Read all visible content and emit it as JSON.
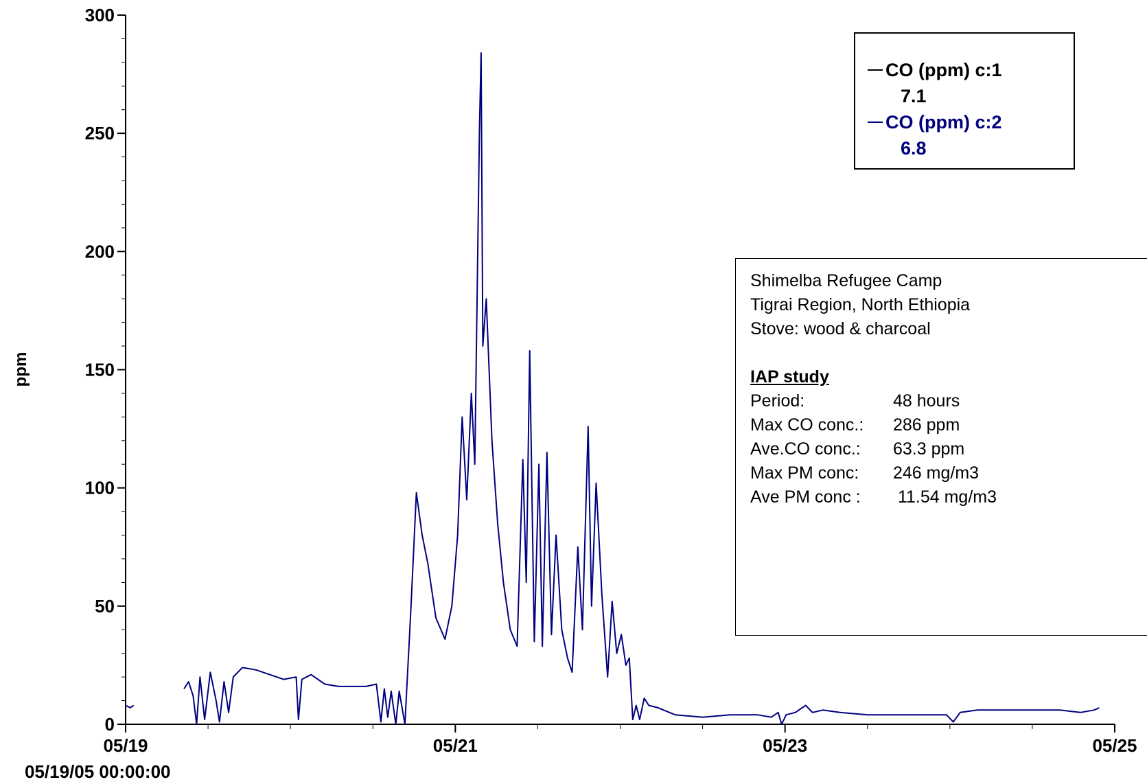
{
  "chart_data": {
    "type": "line",
    "ylabel": "ppm",
    "xlabel": "",
    "ylim": [
      0,
      300
    ],
    "xlim": [
      "05/19",
      "05/25"
    ],
    "y_ticks": [
      "0",
      "50",
      "100",
      "150",
      "200",
      "250",
      "300"
    ],
    "x_ticks": [
      "05/19",
      "05/21",
      "05/23",
      "05/25"
    ],
    "x_start_label": "05/19/05 00:00:00",
    "legend_position": "top-right",
    "series": [
      {
        "name": "CO (ppm) c:1",
        "legend_value": "7.1",
        "color": "#000000",
        "points": []
      },
      {
        "name": "CO (ppm) c:2",
        "legend_value": "6.8",
        "color": "#000080",
        "points": [
          [
            "05/19 00:00",
            8
          ],
          [
            "05/19 00:40",
            7
          ],
          [
            "05/19 01:10",
            8
          ],
          [
            "05/19 08:30",
            15
          ],
          [
            "05/19 09:10",
            18
          ],
          [
            "05/19 09:50",
            12
          ],
          [
            "05/19 10:20",
            0
          ],
          [
            "05/19 10:50",
            20
          ],
          [
            "05/19 11:30",
            2
          ],
          [
            "05/19 12:20",
            22
          ],
          [
            "05/19 13:10",
            10
          ],
          [
            "05/19 13:40",
            1
          ],
          [
            "05/19 14:20",
            18
          ],
          [
            "05/19 15:00",
            5
          ],
          [
            "05/19 15:40",
            20
          ],
          [
            "05/19 17:00",
            24
          ],
          [
            "05/19 19:00",
            23
          ],
          [
            "05/19 21:00",
            21
          ],
          [
            "05/19 23:00",
            19
          ],
          [
            "05/20 00:50",
            20
          ],
          [
            "05/20 01:10",
            2
          ],
          [
            "05/20 01:40",
            19
          ],
          [
            "05/20 03:00",
            21
          ],
          [
            "05/20 05:00",
            17
          ],
          [
            "05/20 07:00",
            16
          ],
          [
            "05/20 09:00",
            16
          ],
          [
            "05/20 11:00",
            16
          ],
          [
            "05/20 12:30",
            17
          ],
          [
            "05/20 13:10",
            1
          ],
          [
            "05/20 13:40",
            15
          ],
          [
            "05/20 14:10",
            3
          ],
          [
            "05/20 14:40",
            14
          ],
          [
            "05/20 15:20",
            0
          ],
          [
            "05/20 15:50",
            14
          ],
          [
            "05/20 16:40",
            0
          ],
          [
            "05/20 17:30",
            47
          ],
          [
            "05/20 18:20",
            98
          ],
          [
            "05/20 19:10",
            80
          ],
          [
            "05/20 20:00",
            68
          ],
          [
            "05/20 21:10",
            45
          ],
          [
            "05/20 22:30",
            36
          ],
          [
            "05/20 23:30",
            50
          ],
          [
            "05/21 00:20",
            80
          ],
          [
            "05/21 01:00",
            130
          ],
          [
            "05/21 01:40",
            95
          ],
          [
            "05/21 02:20",
            140
          ],
          [
            "05/21 02:50",
            110
          ],
          [
            "05/21 03:30",
            250
          ],
          [
            "05/21 03:45",
            284
          ],
          [
            "05/21 04:00",
            160
          ],
          [
            "05/21 04:30",
            180
          ],
          [
            "05/21 05:20",
            120
          ],
          [
            "05/21 06:10",
            85
          ],
          [
            "05/21 07:00",
            60
          ],
          [
            "05/21 08:00",
            40
          ],
          [
            "05/21 09:00",
            33
          ],
          [
            "05/21 09:50",
            112
          ],
          [
            "05/21 10:20",
            60
          ],
          [
            "05/21 10:50",
            158
          ],
          [
            "05/21 11:30",
            35
          ],
          [
            "05/21 12:10",
            110
          ],
          [
            "05/21 12:40",
            33
          ],
          [
            "05/21 13:20",
            115
          ],
          [
            "05/21 14:00",
            38
          ],
          [
            "05/21 14:40",
            80
          ],
          [
            "05/21 15:30",
            40
          ],
          [
            "05/21 16:20",
            28
          ],
          [
            "05/21 17:00",
            22
          ],
          [
            "05/21 17:50",
            75
          ],
          [
            "05/21 18:30",
            40
          ],
          [
            "05/21 19:20",
            126
          ],
          [
            "05/21 19:50",
            50
          ],
          [
            "05/21 20:30",
            102
          ],
          [
            "05/21 21:20",
            55
          ],
          [
            "05/21 22:10",
            20
          ],
          [
            "05/21 22:50",
            52
          ],
          [
            "05/21 23:30",
            30
          ],
          [
            "05/22 00:10",
            38
          ],
          [
            "05/22 00:50",
            25
          ],
          [
            "05/22 01:20",
            28
          ],
          [
            "05/22 01:50",
            2
          ],
          [
            "05/22 02:20",
            8
          ],
          [
            "05/22 02:50",
            2
          ],
          [
            "05/22 03:30",
            11
          ],
          [
            "05/22 04:10",
            8
          ],
          [
            "05/22 05:30",
            7
          ],
          [
            "05/22 08:00",
            4
          ],
          [
            "05/22 12:00",
            3
          ],
          [
            "05/22 16:00",
            4
          ],
          [
            "05/22 20:00",
            4
          ],
          [
            "05/22 22:00",
            3
          ],
          [
            "05/22 23:00",
            5
          ],
          [
            "05/22 23:30",
            0
          ],
          [
            "05/23 00:10",
            4
          ],
          [
            "05/23 01:30",
            5
          ],
          [
            "05/23 03:00",
            8
          ],
          [
            "05/23 04:00",
            5
          ],
          [
            "05/23 05:30",
            6
          ],
          [
            "05/23 08:00",
            5
          ],
          [
            "05/23 12:00",
            4
          ],
          [
            "05/23 16:00",
            4
          ],
          [
            "05/23 20:00",
            4
          ],
          [
            "05/23 23:30",
            4
          ],
          [
            "05/24 00:30",
            1
          ],
          [
            "05/24 01:30",
            5
          ],
          [
            "05/24 04:00",
            6
          ],
          [
            "05/24 08:00",
            6
          ],
          [
            "05/24 12:00",
            6
          ],
          [
            "05/24 16:00",
            6
          ],
          [
            "05/24 19:00",
            5
          ],
          [
            "05/24 21:00",
            6
          ],
          [
            "05/24 21:45",
            7
          ]
        ]
      }
    ]
  },
  "info": {
    "line1": "Shimelba Refugee Camp",
    "line2": "Tigrai Region, North Ethiopia",
    "line3": "Stove: wood & charcoal",
    "heading": "IAP study",
    "rows": [
      {
        "k": "Period:",
        "v": "48 hours"
      },
      {
        "k": "Max CO conc.:",
        "v": "286 ppm"
      },
      {
        "k": "Ave.CO conc.:",
        "v": "63.3 ppm"
      },
      {
        "k": "Max PM conc:",
        "v": "246 mg/m3"
      },
      {
        "k": "Ave PM conc :",
        "v": " 11.54 mg/m3"
      }
    ]
  }
}
